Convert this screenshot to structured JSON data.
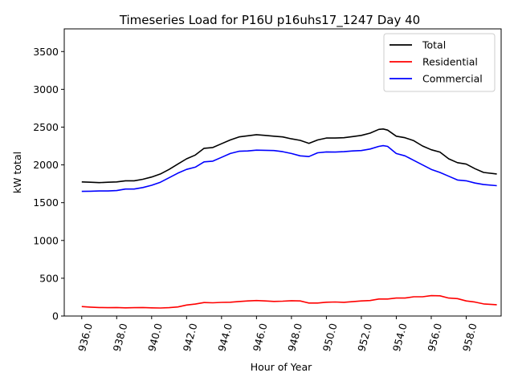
{
  "chart_data": {
    "type": "line",
    "title": "Timeseries Load for P16U p16uhs17_1247  Day 40",
    "xlabel": "Hour of Year",
    "ylabel": "kW total",
    "xlim": [
      935.0,
      960.0
    ],
    "ylim": [
      0,
      3800
    ],
    "x_ticks": [
      936.0,
      938.0,
      940.0,
      942.0,
      944.0,
      946.0,
      948.0,
      950.0,
      952.0,
      954.0,
      956.0,
      958.0
    ],
    "x_tick_labels": [
      "936.0",
      "938.0",
      "940.0",
      "942.0",
      "944.0",
      "946.0",
      "948.0",
      "950.0",
      "952.0",
      "954.0",
      "956.0",
      "958.0"
    ],
    "y_ticks": [
      0,
      500,
      1000,
      1500,
      2000,
      2500,
      3000,
      3500
    ],
    "y_tick_labels": [
      "0",
      "500",
      "1000",
      "1500",
      "2000",
      "2500",
      "3000",
      "3500"
    ],
    "legend_position": "top-right",
    "x": [
      936.0,
      936.5,
      937.0,
      937.5,
      938.0,
      938.5,
      939.0,
      939.5,
      940.0,
      940.5,
      941.0,
      941.5,
      942.0,
      942.5,
      943.0,
      943.5,
      944.0,
      944.5,
      945.0,
      945.5,
      946.0,
      946.5,
      947.0,
      947.5,
      948.0,
      948.5,
      949.0,
      949.5,
      950.0,
      950.5,
      951.0,
      951.5,
      952.0,
      952.5,
      953.0,
      953.25,
      953.5,
      954.0,
      954.5,
      955.0,
      955.5,
      956.0,
      956.5,
      957.0,
      957.5,
      958.0,
      958.5,
      959.0,
      959.75
    ],
    "series": [
      {
        "name": "Total",
        "color": "#000000",
        "values": [
          1775,
          1770,
          1765,
          1770,
          1775,
          1790,
          1790,
          1810,
          1840,
          1880,
          1940,
          2010,
          2080,
          2130,
          2220,
          2230,
          2280,
          2330,
          2370,
          2385,
          2400,
          2390,
          2380,
          2370,
          2345,
          2325,
          2285,
          2330,
          2355,
          2355,
          2360,
          2375,
          2390,
          2420,
          2470,
          2475,
          2460,
          2380,
          2360,
          2320,
          2250,
          2200,
          2170,
          2080,
          2030,
          2010,
          1950,
          1900,
          1880
        ]
      },
      {
        "name": "Residential",
        "color": "#ff0000",
        "values": [
          125,
          118,
          112,
          110,
          112,
          108,
          110,
          112,
          108,
          106,
          110,
          120,
          145,
          158,
          178,
          175,
          180,
          183,
          192,
          200,
          205,
          200,
          193,
          196,
          203,
          200,
          172,
          172,
          183,
          186,
          182,
          190,
          200,
          205,
          225,
          225,
          225,
          238,
          238,
          255,
          255,
          270,
          268,
          238,
          230,
          200,
          185,
          160,
          150
        ]
      },
      {
        "name": "Commercial",
        "color": "#0000ff",
        "values": [
          1650,
          1652,
          1655,
          1655,
          1660,
          1680,
          1680,
          1700,
          1730,
          1770,
          1830,
          1890,
          1940,
          1970,
          2040,
          2050,
          2100,
          2150,
          2180,
          2185,
          2195,
          2193,
          2190,
          2175,
          2150,
          2120,
          2110,
          2160,
          2172,
          2170,
          2175,
          2185,
          2190,
          2210,
          2245,
          2255,
          2245,
          2150,
          2120,
          2060,
          2000,
          1940,
          1900,
          1850,
          1800,
          1790,
          1760,
          1740,
          1725
        ]
      }
    ]
  }
}
